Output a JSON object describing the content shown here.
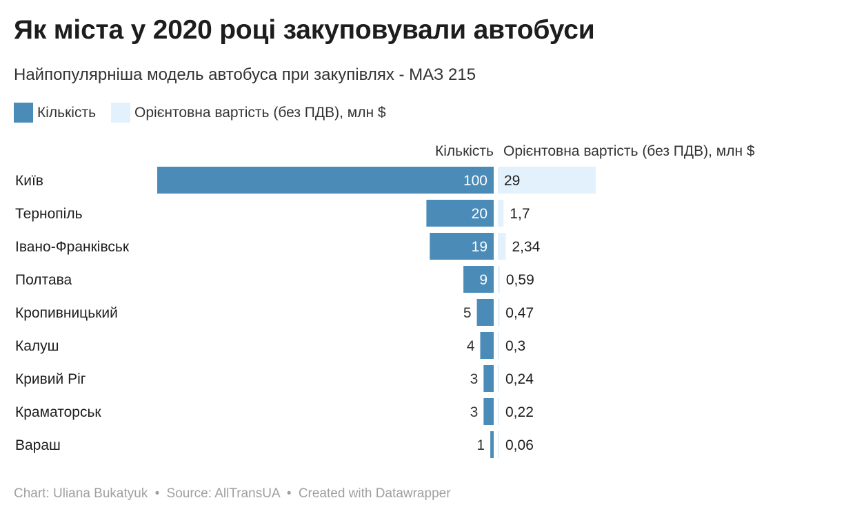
{
  "title": "Як міста у 2020 році закуповували автобуси",
  "subtitle": "Найпопулярніша модель автобуса при закупівлях - МАЗ 215",
  "legend": {
    "count_label": "Кількість",
    "cost_label": "Орієнтовна вартість (без ПДВ), млн $"
  },
  "colors": {
    "count": "#4b8bb8",
    "cost": "#e3f1fd"
  },
  "footer": {
    "chart": "Chart: Uliana Bukatyuk",
    "source": "Source: AllTransUA",
    "created": "Created with Datawrapper",
    "separator": "•"
  },
  "chart_data": {
    "type": "bar",
    "orientation": "horizontal",
    "categories": [
      "Київ",
      "Тернопіль",
      "Івано-Франківськ",
      "Полтава",
      "Кропивницький",
      "Калуш",
      "Кривий Ріг",
      "Краматорськ",
      "Вараш"
    ],
    "series": [
      {
        "name": "Кількість",
        "values": [
          100,
          20,
          19,
          9,
          5,
          4,
          3,
          3,
          1
        ],
        "labels": [
          "100",
          "20",
          "19",
          "9",
          "5",
          "4",
          "3",
          "3",
          "1"
        ]
      },
      {
        "name": "Орієнтовна вартість (без ПДВ), млн $",
        "values": [
          29,
          1.7,
          2.34,
          0.59,
          0.47,
          0.3,
          0.24,
          0.22,
          0.06
        ],
        "labels": [
          "29",
          "1,7",
          "2,34",
          "0,59",
          "0,47",
          "0,3",
          "0,24",
          "0,22",
          "0,06"
        ]
      }
    ],
    "legend_position": "top-left",
    "grid": false
  }
}
